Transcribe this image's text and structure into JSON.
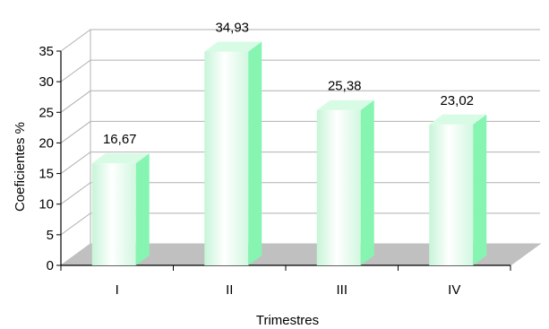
{
  "chart_data": {
    "type": "bar",
    "categories": [
      "I",
      "II",
      "III",
      "IV"
    ],
    "values": [
      16.67,
      34.93,
      25.38,
      23.02
    ],
    "data_labels": [
      "16,67",
      "34,93",
      "25,38",
      "23,02"
    ],
    "xlabel": "Trimestres",
    "ylabel": "Coeficientes %",
    "ylim": [
      0,
      35
    ],
    "yticks": [
      0,
      5,
      10,
      15,
      20,
      25,
      30,
      35
    ],
    "grid": true,
    "style": "3d-column",
    "colors": {
      "bar_front_highlight": "#ffffff",
      "bar_front_edge": "#c6f5d8",
      "bar_side": "#86f5b1",
      "bar_top": "#d7fbe4",
      "floor": "#c0c0c0",
      "grid": "#b0b0b0",
      "axis": "#000000"
    }
  }
}
